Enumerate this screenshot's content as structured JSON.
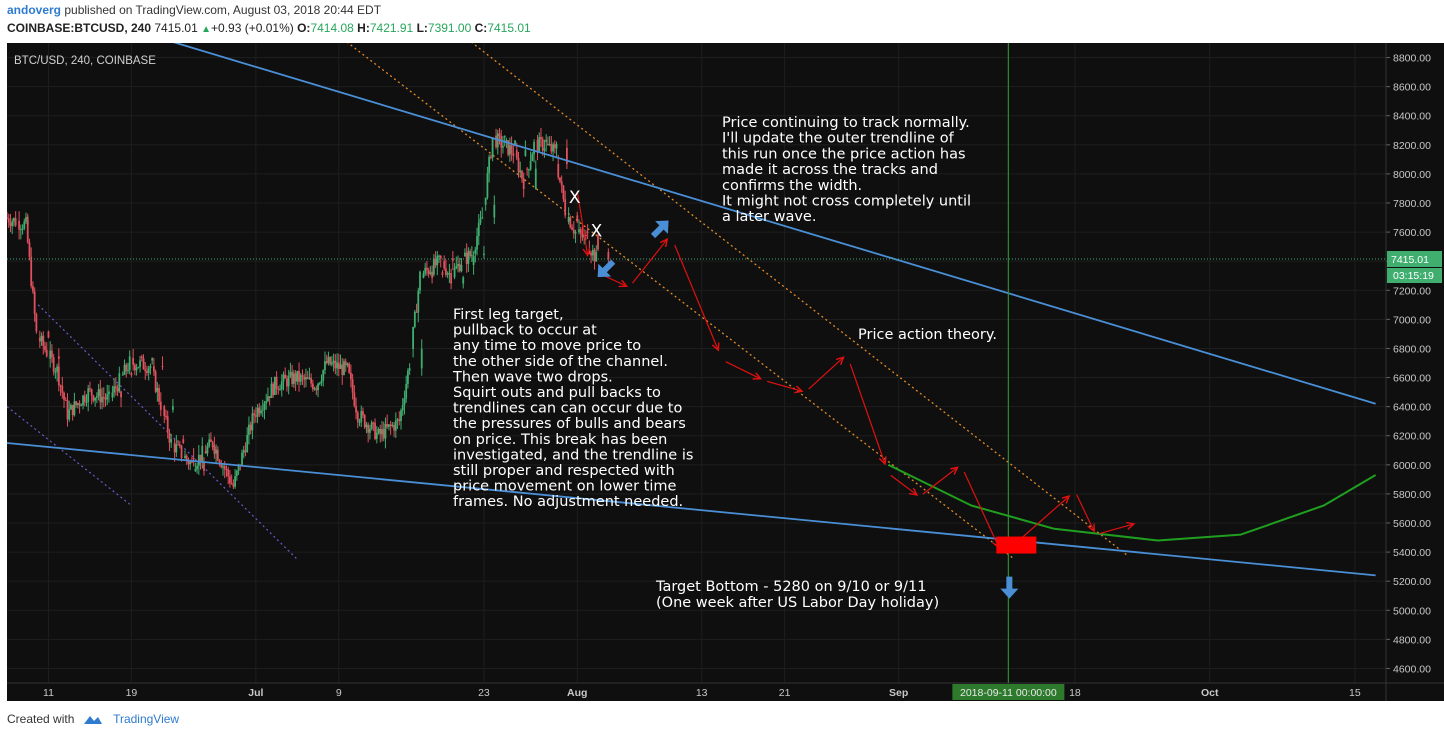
{
  "header": {
    "user": "andoverg",
    "published": "published on TradingView.com, August 03, 2018 20:44 EDT",
    "symbol": "COINBASE:BTCUSD, 240",
    "last": "7415.01",
    "change": "+0.93 (+0.01%)",
    "o_label": "O:",
    "o": "7414.08",
    "h_label": "H:",
    "h": "7421.91",
    "l_label": "L:",
    "l": "7391.00",
    "c_label": "C:",
    "c": "7415.01"
  },
  "footer": {
    "created_with": "Created with",
    "brand": "TradingView"
  },
  "colors": {
    "background": "#0f0f0f",
    "up": "#3fae6f",
    "down": "#e0505d",
    "trendline": "#4a8fd6",
    "channel_dotted": "#e08a2a",
    "arrow": "#e01010",
    "curve": "#1f9e1f",
    "target": "#ff0000",
    "cursor": "#2e8b2e"
  },
  "chart_data": {
    "type": "candlestick",
    "title": "BTC/USD, 240, COINBASE",
    "ylim": [
      4500,
      8900
    ],
    "y_ticks": [
      "8800.00",
      "8600.00",
      "8400.00",
      "8200.00",
      "8000.00",
      "7800.00",
      "7600.00",
      "7400.00",
      "7200.00",
      "7000.00",
      "6800.00",
      "6600.00",
      "6400.00",
      "6200.00",
      "6000.00",
      "5800.00",
      "5600.00",
      "5400.00",
      "5200.00",
      "5000.00",
      "4800.00",
      "4600.00"
    ],
    "x_ticks": [
      "11",
      "19",
      "Jul",
      "9",
      "23",
      "Aug",
      "13",
      "21",
      "Sep",
      "18",
      "Oct",
      "15"
    ],
    "x_tick_dates": [
      "2018-06-11",
      "2018-06-19",
      "2018-07-01",
      "2018-07-09",
      "2018-07-23",
      "2018-08-01",
      "2018-08-13",
      "2018-08-21",
      "2018-09-01",
      "2018-09-18",
      "2018-10-01",
      "2018-10-15"
    ],
    "last_price": "7415.01",
    "countdown": "03:15:19",
    "cursor_date_label": "2018-09-11 00:00:00",
    "price_path": [
      {
        "date": "2018-06-07",
        "price": 7700
      },
      {
        "date": "2018-06-09",
        "price": 7650
      },
      {
        "date": "2018-06-10",
        "price": 6900
      },
      {
        "date": "2018-06-12",
        "price": 6650
      },
      {
        "date": "2018-06-13",
        "price": 6350
      },
      {
        "date": "2018-06-15",
        "price": 6500
      },
      {
        "date": "2018-06-17",
        "price": 6450
      },
      {
        "date": "2018-06-19",
        "price": 6700
      },
      {
        "date": "2018-06-21",
        "price": 6680
      },
      {
        "date": "2018-06-23",
        "price": 6150
      },
      {
        "date": "2018-06-25",
        "price": 6000
      },
      {
        "date": "2018-06-27",
        "price": 6150
      },
      {
        "date": "2018-06-29",
        "price": 5850
      },
      {
        "date": "2018-07-01",
        "price": 6350
      },
      {
        "date": "2018-07-03",
        "price": 6550
      },
      {
        "date": "2018-07-05",
        "price": 6600
      },
      {
        "date": "2018-07-07",
        "price": 6550
      },
      {
        "date": "2018-07-08",
        "price": 6700
      },
      {
        "date": "2018-07-10",
        "price": 6650
      },
      {
        "date": "2018-07-11",
        "price": 6350
      },
      {
        "date": "2018-07-13",
        "price": 6200
      },
      {
        "date": "2018-07-15",
        "price": 6300
      },
      {
        "date": "2018-07-16",
        "price": 6700
      },
      {
        "date": "2018-07-17",
        "price": 7300
      },
      {
        "date": "2018-07-19",
        "price": 7400
      },
      {
        "date": "2018-07-20",
        "price": 7300
      },
      {
        "date": "2018-07-21",
        "price": 7400
      },
      {
        "date": "2018-07-22",
        "price": 7450
      },
      {
        "date": "2018-07-23",
        "price": 7700
      },
      {
        "date": "2018-07-24",
        "price": 8250
      },
      {
        "date": "2018-07-25",
        "price": 8200
      },
      {
        "date": "2018-07-26",
        "price": 8150
      },
      {
        "date": "2018-07-27",
        "price": 7950
      },
      {
        "date": "2018-07-28",
        "price": 8200
      },
      {
        "date": "2018-07-29",
        "price": 8200
      },
      {
        "date": "2018-07-30",
        "price": 8150
      },
      {
        "date": "2018-07-31",
        "price": 7750
      },
      {
        "date": "2018-08-01",
        "price": 7600
      },
      {
        "date": "2018-08-02",
        "price": 7550
      },
      {
        "date": "2018-08-03",
        "price": 7415
      }
    ],
    "annotations": [
      {
        "id": "note-top",
        "lines": [
          "Price continuing to track normally.",
          "",
          "I'll update the outer trendline of",
          "this run once the price action has",
          "made it across the tracks and",
          "confirms the width.",
          "",
          "It might not cross completely until",
          "a later wave."
        ]
      },
      {
        "id": "note-left",
        "lines": [
          "First leg target,",
          "pullback to occur at",
          "any time to move price to",
          "the other side of the channel.",
          "Then wave two drops.",
          "",
          "Squirt outs and pull backs to",
          "trendlines can can occur due to",
          "the pressures of bulls and bears",
          "on price. This break has been",
          "investigated, and the trendline is",
          "still proper and respected with",
          "price movement on lower time",
          "frames. No adjustment needed."
        ]
      },
      {
        "id": "note-theory",
        "lines": [
          "Price action theory."
        ]
      },
      {
        "id": "note-target",
        "lines": [
          "Target Bottom - 5280 on 9/10 or 9/11",
          "(One week after US Labor Day holiday)"
        ]
      },
      {
        "id": "mark-x1",
        "lines": [
          "X"
        ]
      },
      {
        "id": "mark-x2",
        "lines": [
          "X"
        ]
      }
    ],
    "trendlines": [
      {
        "name": "upper",
        "from": {
          "date": "2018-06-21",
          "price": 8950
        },
        "to": {
          "date": "2018-10-17",
          "price": 6420
        }
      },
      {
        "name": "lower",
        "from": {
          "date": "2018-06-07",
          "price": 6150
        },
        "to": {
          "date": "2018-10-17",
          "price": 5240
        }
      }
    ],
    "channel_lines": [
      {
        "from": {
          "date": "2018-07-21",
          "price": 8950
        },
        "to": {
          "date": "2018-09-23",
          "price": 5380
        }
      },
      {
        "from": {
          "date": "2018-07-09",
          "price": 8950
        },
        "to": {
          "date": "2018-09-12",
          "price": 5360
        }
      }
    ],
    "projected_path": [
      {
        "date": "2018-08-03",
        "price": 7320
      },
      {
        "date": "2018-08-06",
        "price": 7220
      },
      {
        "date": "2018-08-10",
        "price": 7580
      },
      {
        "date": "2018-08-15",
        "price": 6720
      },
      {
        "date": "2018-08-19",
        "price": 6580
      },
      {
        "date": "2018-08-23",
        "price": 6500
      },
      {
        "date": "2018-08-27",
        "price": 6760
      },
      {
        "date": "2018-08-31",
        "price": 5940
      },
      {
        "date": "2018-09-03",
        "price": 5780
      },
      {
        "date": "2018-09-07",
        "price": 6000
      },
      {
        "date": "2018-09-11",
        "price": 5380
      },
      {
        "date": "2018-09-18",
        "price": 5820
      },
      {
        "date": "2018-09-20",
        "price": 5520
      },
      {
        "date": "2018-09-24",
        "price": 5600
      }
    ],
    "target": {
      "date": "2018-09-11",
      "price": 5280
    }
  }
}
